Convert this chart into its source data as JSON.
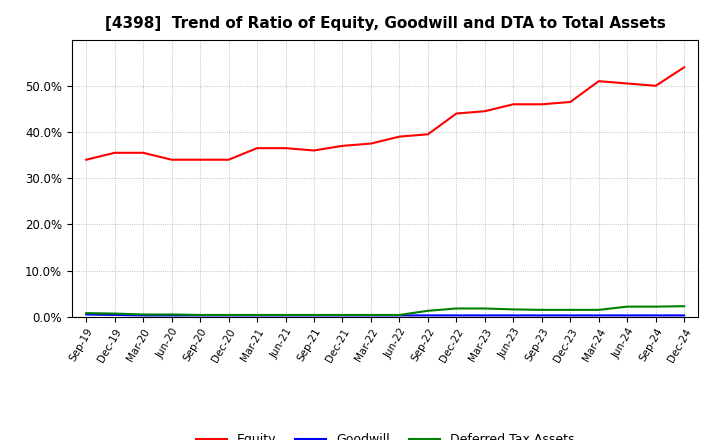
{
  "title": "[4398]  Trend of Ratio of Equity, Goodwill and DTA to Total Assets",
  "x_labels": [
    "Sep-19",
    "Dec-19",
    "Mar-20",
    "Jun-20",
    "Sep-20",
    "Dec-20",
    "Mar-21",
    "Jun-21",
    "Sep-21",
    "Dec-21",
    "Mar-22",
    "Jun-22",
    "Sep-22",
    "Dec-22",
    "Mar-23",
    "Jun-23",
    "Sep-23",
    "Dec-23",
    "Mar-24",
    "Jun-24",
    "Sep-24",
    "Dec-24"
  ],
  "equity": [
    0.34,
    0.355,
    0.355,
    0.34,
    0.34,
    0.34,
    0.365,
    0.365,
    0.36,
    0.37,
    0.375,
    0.39,
    0.395,
    0.44,
    0.445,
    0.46,
    0.46,
    0.465,
    0.51,
    0.505,
    0.5,
    0.54
  ],
  "goodwill": [
    0.005,
    0.004,
    0.003,
    0.003,
    0.003,
    0.003,
    0.003,
    0.003,
    0.003,
    0.003,
    0.003,
    0.003,
    0.003,
    0.003,
    0.003,
    0.003,
    0.003,
    0.003,
    0.003,
    0.003,
    0.003,
    0.003
  ],
  "dta": [
    0.008,
    0.007,
    0.005,
    0.005,
    0.004,
    0.004,
    0.004,
    0.004,
    0.004,
    0.004,
    0.004,
    0.004,
    0.013,
    0.018,
    0.018,
    0.016,
    0.015,
    0.015,
    0.015,
    0.022,
    0.022,
    0.023
  ],
  "equity_color": "#FF0000",
  "goodwill_color": "#0000FF",
  "dta_color": "#008000",
  "bg_color": "#FFFFFF",
  "grid_color": "#999999",
  "ylim": [
    0.0,
    0.6
  ],
  "yticks": [
    0.0,
    0.1,
    0.2,
    0.3,
    0.4,
    0.5
  ],
  "title_fontsize": 11,
  "legend_labels": [
    "Equity",
    "Goodwill",
    "Deferred Tax Assets"
  ]
}
